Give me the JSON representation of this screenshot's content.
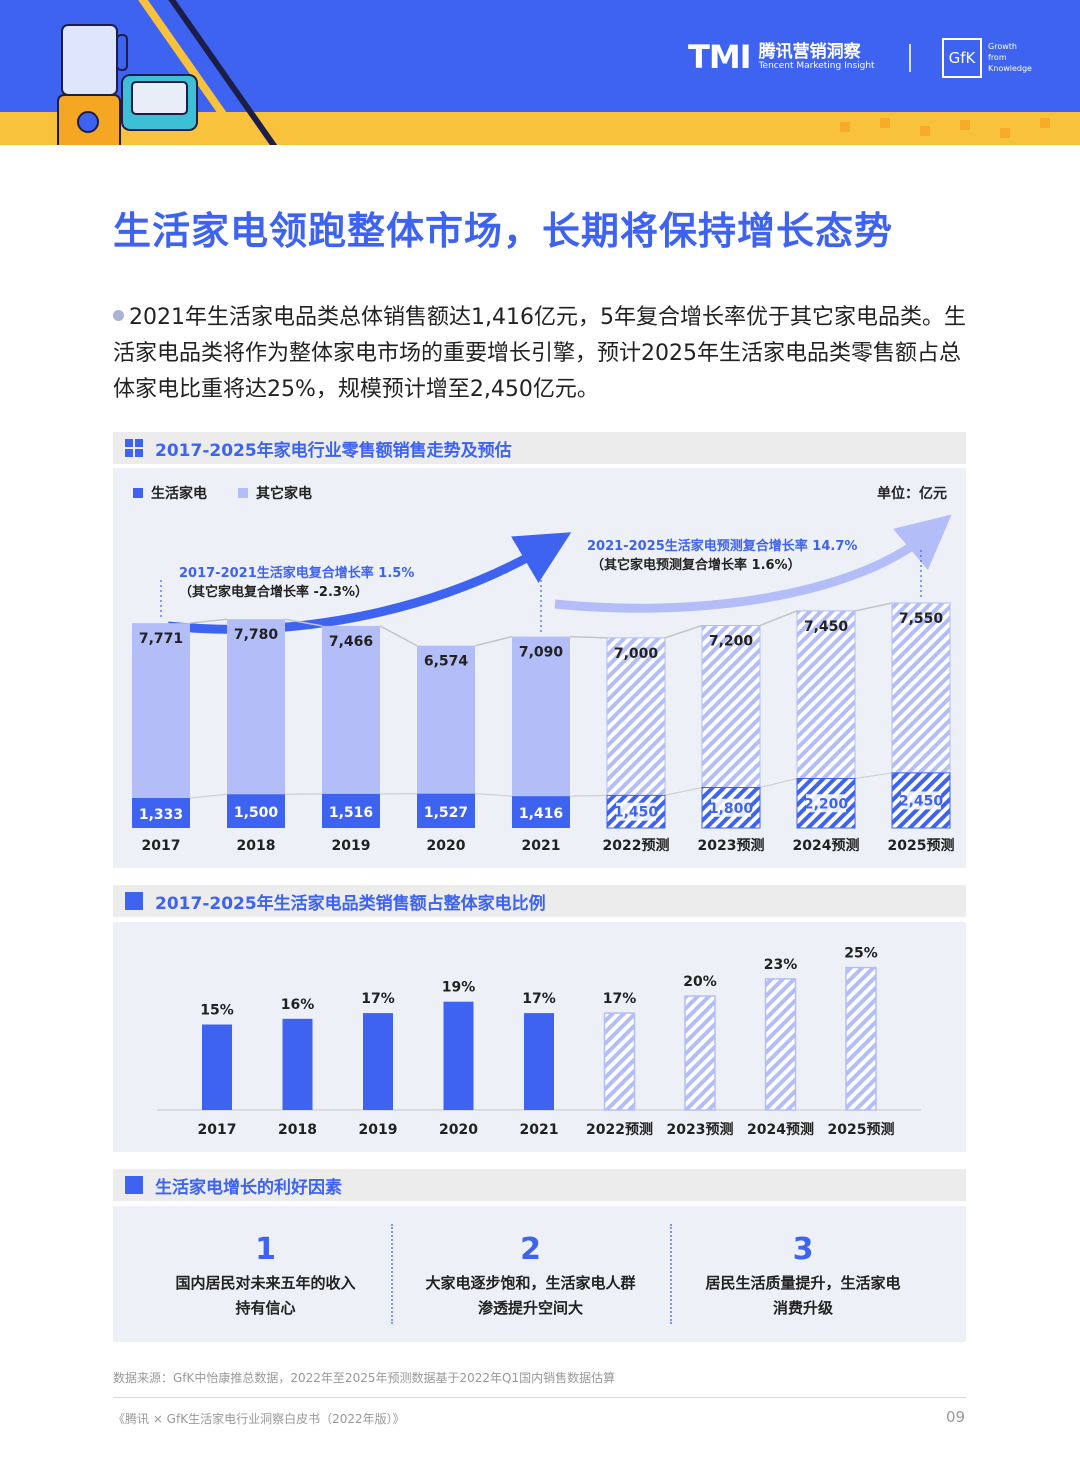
{
  "header": {
    "tmi_mark": "TMI",
    "brand_cn": "腾讯营销洞察",
    "brand_en": "Tencent Marketing Insight",
    "gfk_logo": "GfK",
    "gfk_tagline_1": "Growth",
    "gfk_tagline_2": "from",
    "gfk_tagline_3": "Knowledge"
  },
  "title": "生活家电领跑整体市场，长期将保持增长态势",
  "intro": "2021年生活家电品类总体销售额达1,416亿元，5年复合增长率优于其它家电品类。生活家电品类将作为整体家电市场的重要增长引擎，预计2025年生活家电品类零售额占总体家电比重将达25%，规模预计增至2,450亿元。",
  "section1_title": "2017-2025年家电行业零售额销售走势及预估",
  "section2_title": "2017-2025年生活家电品类销售额占整体家电比例",
  "section3_title": "生活家电增长的利好因素",
  "colors": {
    "primary": "#3d63f0",
    "light": "#b3bdf7",
    "panel": "#eef0f8",
    "accent": "#f9c23c"
  },
  "chart_data": [
    {
      "type": "bar",
      "unit": "单位：亿元",
      "legend": [
        "生活家电",
        "其它家电"
      ],
      "categories": [
        "2017",
        "2018",
        "2019",
        "2020",
        "2021",
        "2022预测",
        "2023预测",
        "2024预测",
        "2025预测"
      ],
      "forecast_from_index": 5,
      "series": [
        {
          "name": "生活家电",
          "values": [
            1333,
            1500,
            1516,
            1527,
            1416,
            1450,
            1800,
            2200,
            2450
          ]
        },
        {
          "name": "其它家电",
          "values": [
            7771,
            7780,
            7466,
            6574,
            7090,
            7000,
            7200,
            7450,
            7550
          ]
        }
      ],
      "value_labels_light": [
        "1,333",
        "1,500",
        "1,516",
        "1,527",
        "1,416",
        "1,450",
        "1,800",
        "2,200",
        "2,450"
      ],
      "value_labels_other": [
        "7,771",
        "7,780",
        "7,466",
        "6,574",
        "7,090",
        "7,000",
        "7,200",
        "7,450",
        "7,550"
      ],
      "annotations": [
        {
          "line1": "2017-2021生活家电复合增长率 1.5%",
          "line2": "（其它家电复合增长率 -2.3%）"
        },
        {
          "line1": "2021-2025生活家电预测复合增长率 14.7%",
          "line2": "（其它家电预测复合增长率 1.6%）"
        }
      ]
    },
    {
      "type": "bar",
      "categories": [
        "2017",
        "2018",
        "2019",
        "2020",
        "2021",
        "2022预测",
        "2023预测",
        "2024预测",
        "2025预测"
      ],
      "forecast_from_index": 5,
      "values": [
        15,
        16,
        17,
        19,
        17,
        17,
        20,
        23,
        25
      ],
      "value_labels": [
        "15%",
        "16%",
        "17%",
        "19%",
        "17%",
        "17%",
        "20%",
        "23%",
        "25%"
      ]
    }
  ],
  "factors": [
    {
      "num": "1",
      "line1": "国内居民对未来五年的收入",
      "line2": "持有信心"
    },
    {
      "num": "2",
      "line1": "大家电逐步饱和，生活家电人群",
      "line2": "渗透提升空间大"
    },
    {
      "num": "3",
      "line1": "居民生活质量提升，生活家电",
      "line2": "消费升级"
    }
  ],
  "source": "数据来源：GfK中怡康推总数据，2022年至2025年预测数据基于2022年Q1国内销售数据估算",
  "footer": "《腾讯 × GfK生活家电行业洞察白皮书（2022年版）》",
  "page_number": "09"
}
